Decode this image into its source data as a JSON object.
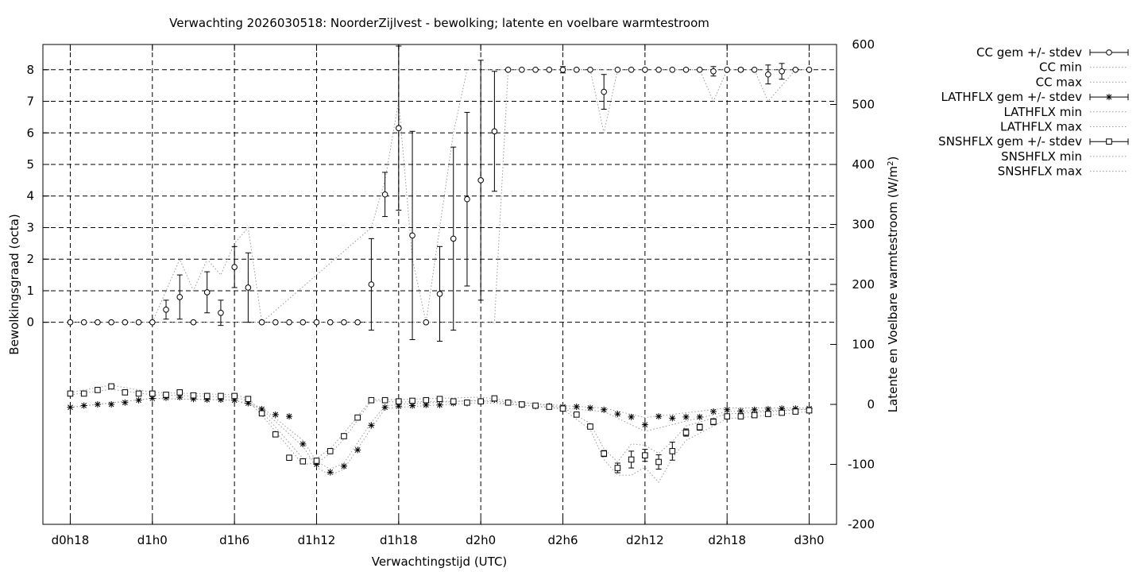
{
  "chart_data": {
    "type": "line",
    "title": "Verwachting 2026030518: NoorderZijlvest - bewolking; latente en voelbare warmtestroom",
    "xlabel": "Verwachtingstijd (UTC)",
    "ylabel": "Bewolkingsgraad (octa)",
    "y2label": "Latente en Voelbare warmtestroom (W/m",
    "y2label_sup": "2",
    "y2label_end": ")",
    "x_unit": "hours since d0h18",
    "xlim": [
      -2,
      56
    ],
    "ylim": [
      -6.4,
      8.8
    ],
    "y2lim": [
      -200,
      600
    ],
    "grid": true,
    "legend_position": "outside-right",
    "x_ticks": [
      {
        "value": 0,
        "label": "d0h18"
      },
      {
        "value": 6,
        "label": "d1h0"
      },
      {
        "value": 12,
        "label": "d1h6"
      },
      {
        "value": 18,
        "label": "d1h12"
      },
      {
        "value": 24,
        "label": "d1h18"
      },
      {
        "value": 30,
        "label": "d2h0"
      },
      {
        "value": 36,
        "label": "d2h6"
      },
      {
        "value": 42,
        "label": "d2h12"
      },
      {
        "value": 48,
        "label": "d2h18"
      },
      {
        "value": 54,
        "label": "d3h0"
      }
    ],
    "y_ticks": [
      {
        "value": 0,
        "label": "0"
      },
      {
        "value": 1,
        "label": "1"
      },
      {
        "value": 2,
        "label": "2"
      },
      {
        "value": 3,
        "label": "3"
      },
      {
        "value": 4,
        "label": "4"
      },
      {
        "value": 5,
        "label": "5"
      },
      {
        "value": 6,
        "label": "6"
      },
      {
        "value": 7,
        "label": "7"
      },
      {
        "value": 8,
        "label": "8"
      }
    ],
    "y2_ticks": [
      {
        "value": -200,
        "label": "-200"
      },
      {
        "value": -100,
        "label": "-100"
      },
      {
        "value": 0,
        "label": "0"
      },
      {
        "value": 100,
        "label": "100"
      },
      {
        "value": 200,
        "label": "200"
      },
      {
        "value": 300,
        "label": "300"
      },
      {
        "value": 400,
        "label": "400"
      },
      {
        "value": 500,
        "label": "500"
      },
      {
        "value": 600,
        "label": "600"
      }
    ],
    "series": [
      {
        "name": "CC gem +/- stdev",
        "axis": "y1",
        "style": "points-errorbars",
        "marker": "circle",
        "x": [
          0,
          1,
          2,
          3,
          4,
          5,
          6,
          7,
          8,
          9,
          10,
          11,
          12,
          13,
          14,
          15,
          16,
          17,
          18,
          19,
          20,
          21,
          22,
          23,
          24,
          25,
          26,
          27,
          28,
          29,
          30,
          31,
          32,
          33,
          34,
          35,
          36,
          37,
          38,
          39,
          40,
          41,
          42,
          43,
          44,
          45,
          46,
          47,
          48,
          49,
          50,
          51,
          52,
          53,
          54
        ],
        "y": [
          0,
          0,
          0,
          0,
          0,
          0,
          0,
          0.4,
          0.8,
          0,
          0.95,
          0.3,
          1.75,
          1.1,
          0,
          0,
          0,
          0,
          0,
          0,
          0,
          0,
          1.2,
          4.05,
          6.15,
          2.75,
          0,
          0.9,
          2.65,
          3.9,
          4.5,
          6.05,
          8,
          8,
          8,
          8,
          8,
          8,
          8,
          7.3,
          8,
          8,
          8,
          8,
          8,
          8,
          8,
          7.95,
          8,
          8,
          8,
          7.85,
          7.95,
          8,
          8
        ],
        "err": [
          0,
          0,
          0,
          0,
          0,
          0,
          0,
          0.3,
          0.7,
          0,
          0.65,
          0.4,
          0.65,
          1.1,
          0,
          0,
          0,
          0,
          0,
          0,
          0,
          0,
          1.45,
          0.7,
          2.6,
          3.3,
          0,
          1.5,
          2.9,
          2.75,
          3.8,
          1.9,
          0,
          0,
          0,
          0,
          0.1,
          0,
          0,
          0.55,
          0,
          0,
          0,
          0,
          0,
          0,
          0,
          0.15,
          0,
          0.05,
          0,
          0.3,
          0.25,
          0,
          0
        ]
      },
      {
        "name": "CC min",
        "axis": "y1",
        "style": "dotted",
        "x": [
          0,
          6,
          7,
          8,
          9,
          10,
          11,
          12,
          13,
          14,
          22,
          23,
          24,
          25,
          26,
          27,
          28,
          29,
          30,
          31,
          32,
          38,
          39,
          40,
          47,
          48,
          51,
          52,
          53,
          54
        ],
        "y": [
          0,
          0,
          0,
          0,
          0,
          0,
          0,
          0,
          0,
          0,
          0,
          0,
          0,
          0,
          0,
          0,
          0,
          0,
          0,
          0,
          8,
          8,
          6,
          8,
          8,
          8,
          8,
          8,
          8,
          8
        ]
      },
      {
        "name": "CC max",
        "axis": "y1",
        "style": "dotted",
        "x": [
          0,
          6,
          7,
          8,
          9,
          10,
          11,
          12,
          13,
          14,
          22,
          23,
          24,
          25,
          26,
          27,
          28,
          29,
          30,
          31,
          32,
          38,
          39,
          40,
          46,
          47,
          48,
          50,
          51,
          52,
          53,
          54
        ],
        "y": [
          0,
          0,
          1,
          2,
          1,
          2,
          1.5,
          2.5,
          3,
          0,
          3,
          4.5,
          7,
          2,
          0,
          3,
          6,
          8,
          8,
          8,
          8,
          8,
          8,
          8,
          8,
          7,
          8,
          8,
          7,
          7.5,
          8,
          8
        ]
      },
      {
        "name": "LATHFLX gem +/- stdev",
        "axis": "y2",
        "style": "points-errorbars",
        "marker": "star",
        "x": [
          0,
          1,
          2,
          3,
          4,
          5,
          6,
          7,
          8,
          9,
          10,
          11,
          12,
          13,
          14,
          15,
          16,
          17,
          18,
          19,
          20,
          21,
          22,
          23,
          24,
          25,
          26,
          27,
          28,
          29,
          30,
          31,
          32,
          33,
          34,
          35,
          36,
          37,
          38,
          39,
          40,
          41,
          42,
          43,
          44,
          45,
          46,
          47,
          48,
          49,
          50,
          51,
          52,
          53,
          54
        ],
        "y": [
          -5,
          -2,
          0,
          0,
          3,
          7,
          10,
          11,
          12,
          9,
          8,
          8,
          7,
          2,
          -8,
          -17,
          -20,
          -66,
          -100,
          -113,
          -103,
          -76,
          -35,
          -5,
          -3,
          -2,
          -1,
          -1,
          2,
          2,
          5,
          8,
          3,
          -1,
          -3,
          -3,
          -4,
          -4,
          -6,
          -9,
          -16,
          -21,
          -34,
          -20,
          -23,
          -21,
          -21,
          -12,
          -9,
          -11,
          -9,
          -8,
          -7,
          -7,
          -7
        ],
        "err": [
          0,
          0,
          0,
          0,
          0,
          0,
          0,
          0,
          0,
          0,
          0,
          0,
          0,
          0,
          0,
          0,
          0,
          0,
          0,
          0,
          0,
          0,
          0,
          0,
          0,
          0,
          0,
          0,
          0,
          0,
          0,
          0,
          0,
          0,
          0,
          0,
          0,
          0,
          0,
          0,
          0,
          0,
          0,
          0,
          0,
          0,
          0,
          0,
          0,
          0,
          0,
          0,
          0,
          0,
          0
        ]
      },
      {
        "name": "LATHFLX min",
        "axis": "y2",
        "style": "dotted",
        "x": [
          0,
          6,
          12,
          14,
          17,
          18,
          19,
          20,
          22,
          23,
          24,
          30,
          36,
          39,
          42,
          45,
          48,
          54
        ],
        "y": [
          -5,
          10,
          7,
          -8,
          -70,
          -105,
          -118,
          -108,
          -40,
          -7,
          -5,
          3,
          -6,
          -12,
          -45,
          -28,
          -12,
          -8
        ]
      },
      {
        "name": "LATHFLX max",
        "axis": "y2",
        "style": "dotted",
        "x": [
          0,
          6,
          12,
          14,
          17,
          18,
          19,
          20,
          22,
          23,
          24,
          30,
          36,
          39,
          42,
          45,
          48,
          54
        ],
        "y": [
          -5,
          10,
          7,
          -5,
          -60,
          -95,
          -108,
          -98,
          -30,
          -3,
          0,
          7,
          -2,
          -6,
          -22,
          -14,
          -6,
          -6
        ]
      },
      {
        "name": "SNSHFLX gem +/- stdev",
        "axis": "y2",
        "style": "points-errorbars",
        "marker": "square",
        "x": [
          0,
          1,
          2,
          3,
          4,
          5,
          6,
          7,
          8,
          9,
          10,
          11,
          12,
          13,
          14,
          15,
          16,
          17,
          18,
          19,
          20,
          21,
          22,
          23,
          24,
          25,
          26,
          27,
          28,
          29,
          30,
          31,
          32,
          33,
          34,
          35,
          36,
          37,
          38,
          39,
          40,
          41,
          42,
          43,
          44,
          45,
          46,
          47,
          48,
          49,
          50,
          51,
          52,
          53,
          54
        ],
        "y": [
          18,
          18,
          24,
          30,
          20,
          18,
          18,
          16,
          20,
          15,
          14,
          14,
          14,
          9,
          -15,
          -50,
          -89,
          -95,
          -94,
          -78,
          -53,
          -22,
          7,
          7,
          5,
          6,
          7,
          9,
          5,
          3,
          5,
          10,
          3,
          0,
          -2,
          -4,
          -7,
          -17,
          -37,
          -82,
          -106,
          -92,
          -85,
          -96,
          -78,
          -47,
          -38,
          -29,
          -20,
          -20,
          -18,
          -16,
          -14,
          -12,
          -10
        ],
        "err": [
          0,
          0,
          0,
          0,
          0,
          0,
          0,
          0,
          0,
          0,
          0,
          0,
          0,
          0,
          0,
          0,
          0,
          0,
          0,
          0,
          0,
          0,
          0,
          0,
          0,
          0,
          0,
          0,
          0,
          0,
          0,
          0,
          0,
          0,
          0,
          0,
          0,
          0,
          0,
          5,
          8,
          14,
          10,
          12,
          15,
          6,
          5,
          5,
          0,
          0,
          0,
          0,
          0,
          0,
          0
        ]
      },
      {
        "name": "SNSHFLX min",
        "axis": "y2",
        "style": "dotted",
        "x": [
          0,
          3,
          6,
          12,
          13,
          14,
          17,
          18,
          19,
          20,
          22,
          24,
          30,
          36,
          38,
          39,
          40,
          41,
          42,
          43,
          44,
          45,
          48,
          54
        ],
        "y": [
          16,
          25,
          16,
          12,
          6,
          -18,
          -100,
          -98,
          -82,
          -58,
          6,
          4,
          6,
          -8,
          -42,
          -92,
          -118,
          -118,
          -105,
          -130,
          -90,
          -60,
          -24,
          -12
        ]
      },
      {
        "name": "SNSHFLX max",
        "axis": "y2",
        "style": "dotted",
        "x": [
          0,
          3,
          6,
          12,
          13,
          14,
          17,
          18,
          19,
          20,
          22,
          24,
          30,
          36,
          38,
          39,
          40,
          41,
          42,
          43,
          44,
          45,
          48,
          54
        ],
        "y": [
          20,
          32,
          20,
          16,
          10,
          -12,
          -90,
          -90,
          -74,
          -48,
          8,
          8,
          12,
          -5,
          -32,
          -74,
          -96,
          -66,
          -68,
          -82,
          -62,
          -36,
          -16,
          -8
        ]
      }
    ]
  }
}
